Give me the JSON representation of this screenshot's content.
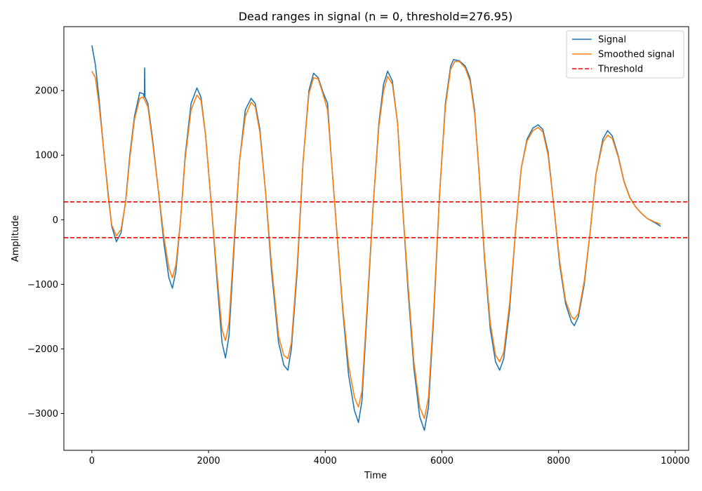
{
  "chart_data": {
    "type": "line",
    "title": "Dead ranges in signal (n = 0, threshold=276.95)",
    "xlabel": "Time",
    "ylabel": "Amplitude",
    "xlim": [
      -480,
      10230
    ],
    "ylim": [
      -3570,
      2990
    ],
    "xticks": [
      0,
      2000,
      4000,
      6000,
      8000,
      10000
    ],
    "yticks": [
      -3000,
      -2000,
      -1000,
      0,
      1000,
      2000
    ],
    "grid": false,
    "legend_position": "upper-right",
    "threshold": 276.95,
    "series": [
      {
        "name": "Signal",
        "color": "#1f77b4",
        "points": [
          [
            0,
            2700
          ],
          [
            60,
            2400
          ],
          [
            120,
            1900
          ],
          [
            200,
            1100
          ],
          [
            280,
            400
          ],
          [
            340,
            -100
          ],
          [
            420,
            -340
          ],
          [
            500,
            -200
          ],
          [
            580,
            300
          ],
          [
            650,
            1000
          ],
          [
            730,
            1600
          ],
          [
            820,
            1970
          ],
          [
            880,
            1950
          ],
          [
            900,
            1900
          ],
          [
            905,
            2350
          ],
          [
            910,
            1900
          ],
          [
            960,
            1800
          ],
          [
            1040,
            1250
          ],
          [
            1140,
            450
          ],
          [
            1240,
            -400
          ],
          [
            1320,
            -900
          ],
          [
            1380,
            -1060
          ],
          [
            1440,
            -800
          ],
          [
            1520,
            0
          ],
          [
            1600,
            1000
          ],
          [
            1700,
            1800
          ],
          [
            1800,
            2040
          ],
          [
            1870,
            1900
          ],
          [
            1950,
            1300
          ],
          [
            2050,
            200
          ],
          [
            2150,
            -1000
          ],
          [
            2230,
            -1900
          ],
          [
            2290,
            -2140
          ],
          [
            2350,
            -1800
          ],
          [
            2440,
            -400
          ],
          [
            2530,
            900
          ],
          [
            2630,
            1700
          ],
          [
            2730,
            1880
          ],
          [
            2800,
            1800
          ],
          [
            2880,
            1400
          ],
          [
            2980,
            400
          ],
          [
            3080,
            -800
          ],
          [
            3200,
            -1900
          ],
          [
            3290,
            -2250
          ],
          [
            3360,
            -2330
          ],
          [
            3420,
            -2000
          ],
          [
            3520,
            -800
          ],
          [
            3620,
            900
          ],
          [
            3720,
            2000
          ],
          [
            3800,
            2270
          ],
          [
            3880,
            2200
          ],
          [
            3960,
            1980
          ],
          [
            4040,
            1800
          ],
          [
            4100,
            1000
          ],
          [
            4200,
            -200
          ],
          [
            4300,
            -1400
          ],
          [
            4400,
            -2400
          ],
          [
            4500,
            -2950
          ],
          [
            4570,
            -3140
          ],
          [
            4630,
            -2800
          ],
          [
            4720,
            -1400
          ],
          [
            4820,
            200
          ],
          [
            4920,
            1500
          ],
          [
            5000,
            2100
          ],
          [
            5070,
            2300
          ],
          [
            5150,
            2150
          ],
          [
            5240,
            1500
          ],
          [
            5320,
            300
          ],
          [
            5420,
            -1100
          ],
          [
            5520,
            -2300
          ],
          [
            5620,
            -3050
          ],
          [
            5700,
            -3260
          ],
          [
            5770,
            -2900
          ],
          [
            5860,
            -1500
          ],
          [
            5960,
            400
          ],
          [
            6060,
            1800
          ],
          [
            6150,
            2380
          ],
          [
            6200,
            2480
          ],
          [
            6300,
            2460
          ],
          [
            6400,
            2380
          ],
          [
            6480,
            2200
          ],
          [
            6560,
            1700
          ],
          [
            6640,
            700
          ],
          [
            6730,
            -600
          ],
          [
            6830,
            -1700
          ],
          [
            6920,
            -2200
          ],
          [
            6990,
            -2330
          ],
          [
            7060,
            -2150
          ],
          [
            7160,
            -1400
          ],
          [
            7260,
            -200
          ],
          [
            7360,
            800
          ],
          [
            7460,
            1250
          ],
          [
            7560,
            1420
          ],
          [
            7650,
            1470
          ],
          [
            7730,
            1400
          ],
          [
            7820,
            1050
          ],
          [
            7920,
            200
          ],
          [
            8020,
            -700
          ],
          [
            8120,
            -1300
          ],
          [
            8220,
            -1580
          ],
          [
            8270,
            -1640
          ],
          [
            8340,
            -1500
          ],
          [
            8440,
            -1000
          ],
          [
            8540,
            -200
          ],
          [
            8640,
            700
          ],
          [
            8760,
            1250
          ],
          [
            8840,
            1380
          ],
          [
            8920,
            1300
          ],
          [
            9020,
            1000
          ],
          [
            9120,
            600
          ],
          [
            9220,
            350
          ],
          [
            9320,
            200
          ],
          [
            9420,
            100
          ],
          [
            9520,
            20
          ],
          [
            9640,
            -40
          ],
          [
            9750,
            -100
          ]
        ]
      },
      {
        "name": "Smoothed signal",
        "color": "#ff7f0e",
        "points": [
          [
            0,
            2300
          ],
          [
            60,
            2200
          ],
          [
            120,
            1800
          ],
          [
            200,
            1100
          ],
          [
            280,
            350
          ],
          [
            340,
            -80
          ],
          [
            420,
            -250
          ],
          [
            500,
            -150
          ],
          [
            580,
            280
          ],
          [
            650,
            950
          ],
          [
            730,
            1550
          ],
          [
            820,
            1880
          ],
          [
            880,
            1900
          ],
          [
            960,
            1750
          ],
          [
            1040,
            1200
          ],
          [
            1140,
            450
          ],
          [
            1240,
            -300
          ],
          [
            1320,
            -750
          ],
          [
            1380,
            -900
          ],
          [
            1440,
            -700
          ],
          [
            1520,
            0
          ],
          [
            1600,
            950
          ],
          [
            1700,
            1700
          ],
          [
            1800,
            1930
          ],
          [
            1870,
            1850
          ],
          [
            1950,
            1300
          ],
          [
            2050,
            200
          ],
          [
            2150,
            -900
          ],
          [
            2230,
            -1700
          ],
          [
            2290,
            -1870
          ],
          [
            2350,
            -1600
          ],
          [
            2440,
            -300
          ],
          [
            2530,
            900
          ],
          [
            2630,
            1600
          ],
          [
            2730,
            1820
          ],
          [
            2800,
            1750
          ],
          [
            2880,
            1350
          ],
          [
            2980,
            400
          ],
          [
            3080,
            -700
          ],
          [
            3200,
            -1800
          ],
          [
            3290,
            -2100
          ],
          [
            3360,
            -2150
          ],
          [
            3420,
            -1900
          ],
          [
            3520,
            -700
          ],
          [
            3620,
            900
          ],
          [
            3720,
            1950
          ],
          [
            3800,
            2200
          ],
          [
            3880,
            2180
          ],
          [
            3960,
            1950
          ],
          [
            4040,
            1700
          ],
          [
            4100,
            1000
          ],
          [
            4200,
            -200
          ],
          [
            4300,
            -1350
          ],
          [
            4400,
            -2250
          ],
          [
            4500,
            -2750
          ],
          [
            4570,
            -2900
          ],
          [
            4630,
            -2650
          ],
          [
            4720,
            -1300
          ],
          [
            4820,
            200
          ],
          [
            4920,
            1450
          ],
          [
            5000,
            2000
          ],
          [
            5070,
            2220
          ],
          [
            5150,
            2100
          ],
          [
            5240,
            1500
          ],
          [
            5320,
            300
          ],
          [
            5420,
            -1000
          ],
          [
            5520,
            -2200
          ],
          [
            5620,
            -2900
          ],
          [
            5700,
            -3080
          ],
          [
            5770,
            -2750
          ],
          [
            5860,
            -1400
          ],
          [
            5960,
            400
          ],
          [
            6060,
            1750
          ],
          [
            6150,
            2330
          ],
          [
            6220,
            2450
          ],
          [
            6300,
            2450
          ],
          [
            6400,
            2350
          ],
          [
            6480,
            2150
          ],
          [
            6560,
            1650
          ],
          [
            6640,
            700
          ],
          [
            6730,
            -550
          ],
          [
            6830,
            -1600
          ],
          [
            6920,
            -2100
          ],
          [
            6990,
            -2200
          ],
          [
            7060,
            -2050
          ],
          [
            7160,
            -1300
          ],
          [
            7260,
            -200
          ],
          [
            7360,
            800
          ],
          [
            7460,
            1220
          ],
          [
            7560,
            1380
          ],
          [
            7650,
            1430
          ],
          [
            7730,
            1360
          ],
          [
            7820,
            1000
          ],
          [
            7920,
            200
          ],
          [
            8020,
            -650
          ],
          [
            8120,
            -1250
          ],
          [
            8220,
            -1500
          ],
          [
            8270,
            -1540
          ],
          [
            8340,
            -1450
          ],
          [
            8440,
            -950
          ],
          [
            8540,
            -200
          ],
          [
            8640,
            700
          ],
          [
            8760,
            1200
          ],
          [
            8840,
            1310
          ],
          [
            8920,
            1260
          ],
          [
            9020,
            980
          ],
          [
            9120,
            590
          ],
          [
            9220,
            340
          ],
          [
            9320,
            200
          ],
          [
            9420,
            100
          ],
          [
            9520,
            20
          ],
          [
            9640,
            -30
          ],
          [
            9750,
            -70
          ]
        ]
      },
      {
        "name": "Threshold",
        "color": "#ff0000",
        "style": "dashed",
        "values": [
          276.95,
          -276.95
        ]
      }
    ]
  }
}
